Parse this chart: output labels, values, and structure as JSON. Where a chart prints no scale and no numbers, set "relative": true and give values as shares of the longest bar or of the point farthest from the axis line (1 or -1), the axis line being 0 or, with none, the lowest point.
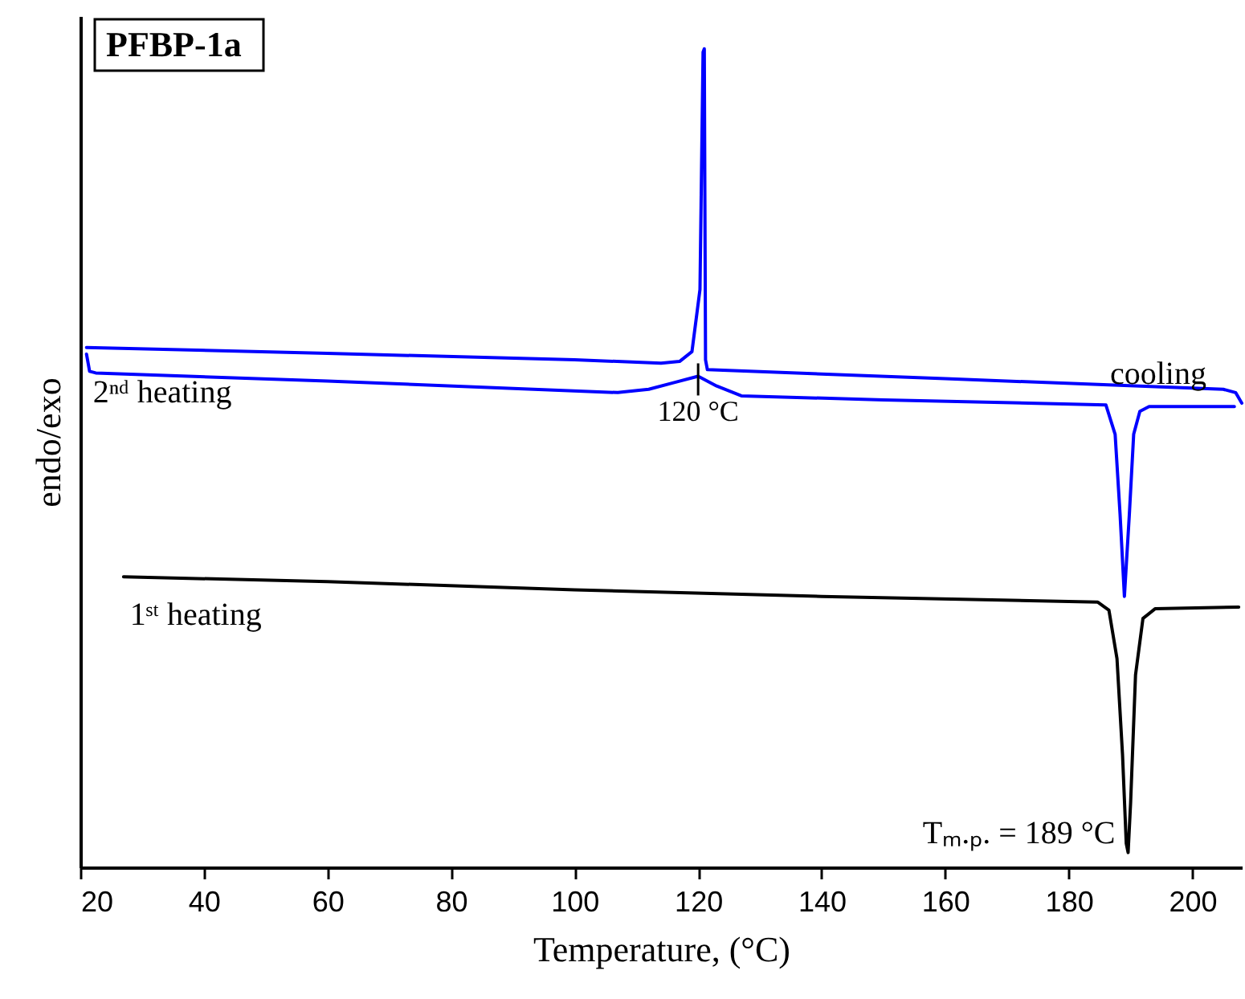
{
  "chart_data": {
    "type": "line",
    "title": "PFBP-1a",
    "xlabel": "Temperature, (°C)",
    "ylabel": "endo/exo",
    "relative": true,
    "xlim": [
      20,
      208
    ],
    "xticks": [
      20,
      40,
      60,
      80,
      100,
      120,
      140,
      160,
      180,
      200
    ],
    "tick_labels": "x",
    "marker": "none",
    "line_style": "solid",
    "series": [
      {
        "name": "cooling",
        "color": "#0000ff",
        "x": [
          208,
          207,
          205,
          160,
          121.5,
          121.2,
          121,
          120.8,
          120.3,
          119,
          117,
          114,
          100,
          60,
          21
        ],
        "values": [
          0.567,
          0.58,
          0.584,
          0.597,
          0.608,
          0.62,
          1,
          0.996,
          0.706,
          0.63,
          0.618,
          0.616,
          0.62,
          0.628,
          0.635
        ]
      },
      {
        "name": "2ⁿᵈ heating",
        "color": "#0000ff",
        "x": [
          21,
          21.5,
          22.5,
          60,
          107,
          112,
          116,
          120,
          123,
          127,
          150,
          186,
          187.5,
          188.3,
          189,
          189.8,
          190.5,
          191.5,
          193,
          206.8
        ],
        "values": [
          0.627,
          0.606,
          0.604,
          0.594,
          0.58,
          0.584,
          0.592,
          0.6,
          0.588,
          0.576,
          0.571,
          0.565,
          0.529,
          0.431,
          0.331,
          0.431,
          0.529,
          0.557,
          0.563,
          0.563
        ]
      },
      {
        "name": "1ˢᵗ heating",
        "color": "#000000",
        "x": [
          27,
          60,
          100,
          140,
          184.7,
          186.5,
          187.8,
          188.7,
          189.3,
          189.6,
          190,
          190.8,
          192,
          194,
          207.5
        ],
        "values": [
          0.355,
          0.349,
          0.339,
          0.331,
          0.324,
          0.314,
          0.255,
          0.137,
          0.029,
          0.018,
          0.078,
          0.235,
          0.304,
          0.316,
          0.318
        ]
      }
    ],
    "annotations": [
      {
        "text": "120 °C",
        "x": 120,
        "y": 0.6
      },
      {
        "text": "Tₘ.ₚ. = 189 °C",
        "x": 189.6,
        "y": 0.018
      }
    ]
  }
}
